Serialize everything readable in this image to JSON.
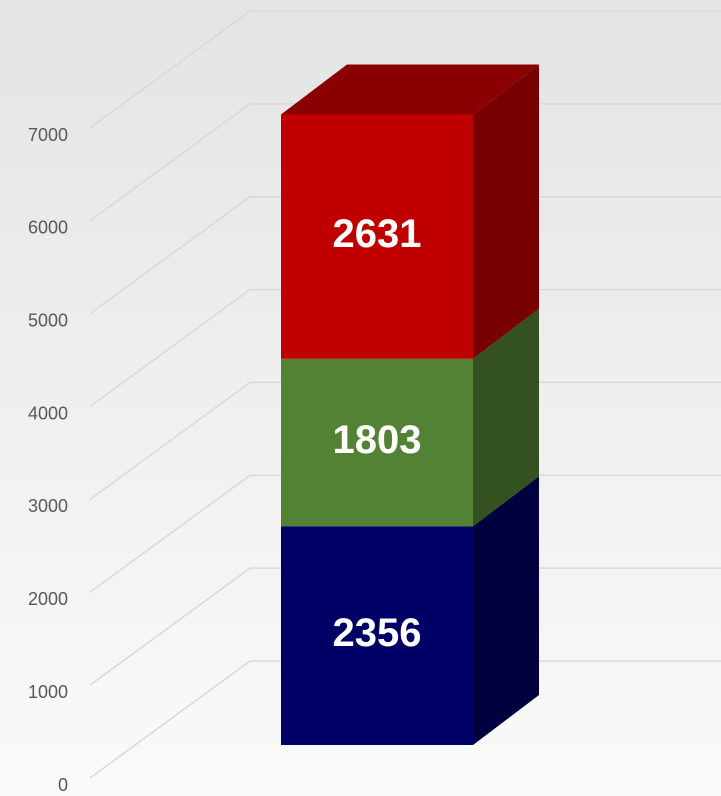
{
  "chart_data": {
    "type": "bar3d_stacked",
    "categories": [
      null
    ],
    "series": [
      {
        "color": "#000066",
        "values": [
          2356
        ]
      },
      {
        "color": "#548235",
        "values": [
          1803
        ]
      },
      {
        "color": "#c00000",
        "values": [
          2631
        ]
      }
    ],
    "ylim": [
      0,
      7000
    ],
    "yticks": [
      0,
      1000,
      2000,
      3000,
      4000,
      5000,
      6000,
      7000
    ],
    "grid": true
  }
}
